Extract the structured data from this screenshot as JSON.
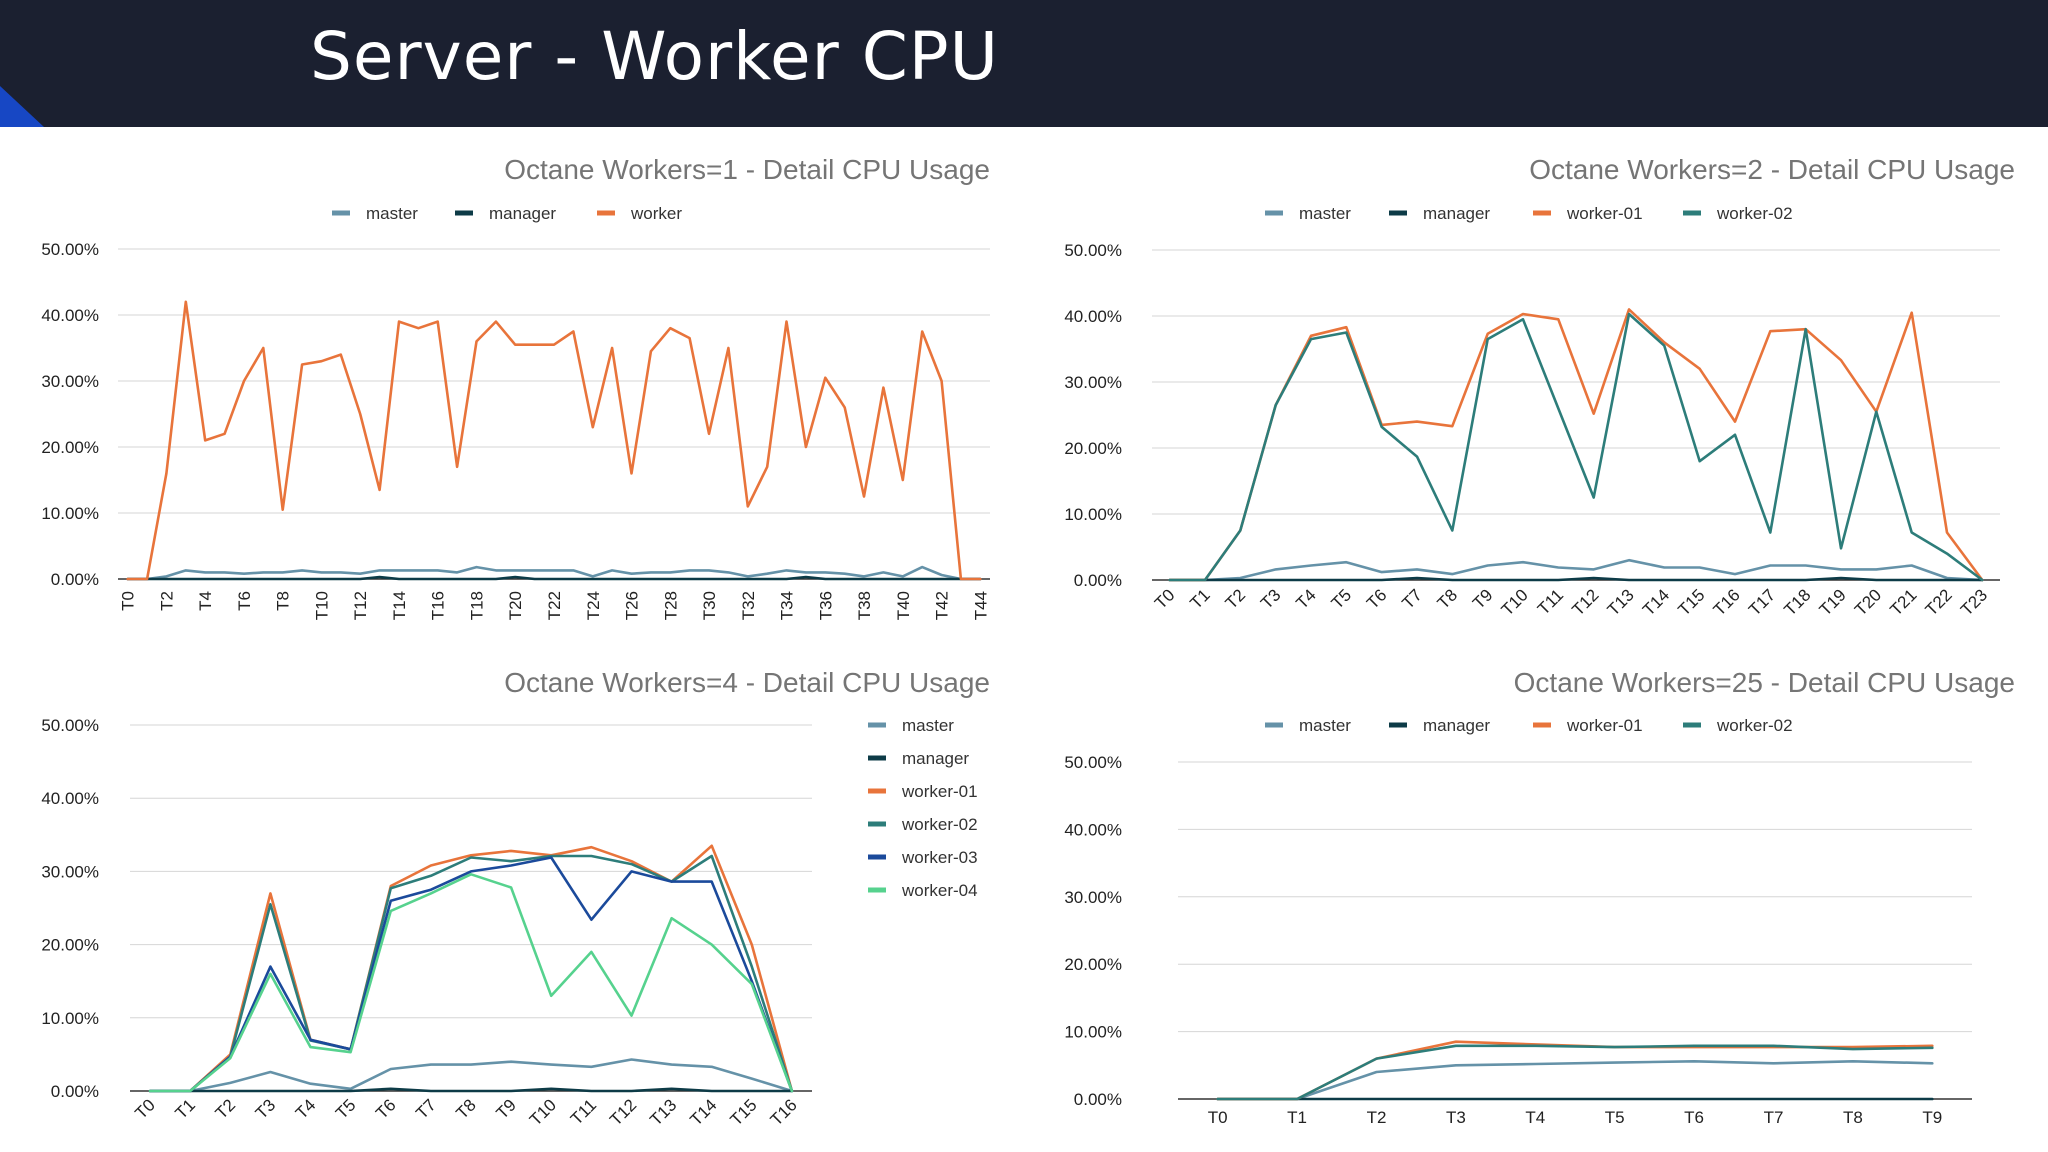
{
  "slide": {
    "title": "Server - Worker CPU"
  },
  "colors": {
    "master": "#6592a8",
    "manager": "#0d3b47",
    "worker": "#e8743b",
    "worker-01": "#e8743b",
    "worker-02": "#2d7d7a",
    "worker-03": "#1b4a9b",
    "worker-04": "#56d28e"
  },
  "chart_data": [
    {
      "type": "line",
      "title": "Octane Workers=1 - Detail CPU Usage",
      "legend_position": "top",
      "grid": true,
      "ylim": [
        0,
        50
      ],
      "yticks": [
        "0.00%",
        "10.00%",
        "20.00%",
        "30.00%",
        "40.00%",
        "50.00%"
      ],
      "categories": [
        "T0",
        "T1",
        "T2",
        "T3",
        "T4",
        "T5",
        "T6",
        "T7",
        "T8",
        "T9",
        "T10",
        "T11",
        "T12",
        "T13",
        "T14",
        "T15",
        "T16",
        "T17",
        "T18",
        "T19",
        "T20",
        "T21",
        "T22",
        "T23",
        "T24",
        "T25",
        "T26",
        "T27",
        "T28",
        "T29",
        "T30",
        "T31",
        "T32",
        "T33",
        "T34",
        "T35",
        "T36",
        "T37",
        "T38",
        "T39",
        "T40",
        "T41",
        "T42",
        "T43",
        "T44"
      ],
      "tick_labels": [
        "T0",
        "",
        "T2",
        "",
        "T4",
        "",
        "T6",
        "",
        "T8",
        "",
        "T10",
        "",
        "T12",
        "",
        "T14",
        "",
        "T16",
        "",
        "T18",
        "",
        "T20",
        "",
        "T22",
        "",
        "T24",
        "",
        "T26",
        "",
        "T28",
        "",
        "T30",
        "",
        "T32",
        "",
        "T34",
        "",
        "T36",
        "",
        "T38",
        "",
        "T40",
        "",
        "T42",
        "",
        "T44"
      ],
      "series": [
        {
          "name": "master",
          "values": [
            0,
            0,
            0.4,
            1.3,
            1.0,
            1.0,
            0.8,
            1.0,
            1.0,
            1.3,
            1.0,
            1.0,
            0.8,
            1.3,
            1.3,
            1.3,
            1.3,
            1.0,
            1.8,
            1.3,
            1.3,
            1.3,
            1.3,
            1.3,
            0.4,
            1.3,
            0.8,
            1.0,
            1.0,
            1.3,
            1.3,
            1.0,
            0.4,
            0.8,
            1.3,
            1.0,
            1.0,
            0.8,
            0.4,
            1.0,
            0.4,
            1.8,
            0.6,
            0,
            0
          ]
        },
        {
          "name": "manager",
          "values": [
            0,
            0,
            0,
            0,
            0,
            0,
            0,
            0,
            0,
            0,
            0,
            0,
            0,
            0.3,
            0,
            0,
            0,
            0,
            0,
            0,
            0.3,
            0,
            0,
            0,
            0,
            0,
            0,
            0,
            0,
            0,
            0,
            0,
            0,
            0,
            0,
            0.3,
            0,
            0,
            0,
            0,
            0,
            0,
            0,
            0,
            0
          ]
        },
        {
          "name": "worker",
          "values": [
            0,
            0,
            16,
            42,
            21,
            22,
            30,
            35,
            10.5,
            32.5,
            33,
            34,
            25,
            13.5,
            39,
            38,
            39,
            17,
            36,
            39,
            35.5,
            35.5,
            35.5,
            37.5,
            23,
            35,
            16,
            34.5,
            38,
            36.5,
            22,
            35,
            11,
            17,
            39,
            20,
            30.5,
            26,
            12.5,
            29,
            15,
            37.5,
            30,
            0,
            0
          ]
        }
      ]
    },
    {
      "type": "line",
      "title": "Octane Workers=2 - Detail CPU Usage",
      "legend_position": "top",
      "grid": true,
      "ylim": [
        0,
        50
      ],
      "yticks": [
        "0.00%",
        "10.00%",
        "20.00%",
        "30.00%",
        "40.00%",
        "50.00%"
      ],
      "categories": [
        "T0",
        "T1",
        "T2",
        "T3",
        "T4",
        "T5",
        "T6",
        "T7",
        "T8",
        "T9",
        "T10",
        "T11",
        "T12",
        "T13",
        "T14",
        "T15",
        "T16",
        "T17",
        "T18",
        "T19",
        "T20",
        "T21",
        "T22",
        "T23"
      ],
      "tick_labels": [
        "T0",
        "T1",
        "T2",
        "T3",
        "T4",
        "T5",
        "T6",
        "T7",
        "T8",
        "T9",
        "T10",
        "T11",
        "T12",
        "T13",
        "T14",
        "T15",
        "T16",
        "T17",
        "T18",
        "T19",
        "T20",
        "T21",
        "T22",
        "T23"
      ],
      "series": [
        {
          "name": "master",
          "values": [
            0,
            0,
            0.3,
            1.6,
            2.2,
            2.7,
            1.2,
            1.6,
            0.9,
            2.2,
            2.7,
            1.9,
            1.6,
            3.0,
            1.9,
            1.9,
            0.9,
            2.2,
            2.2,
            1.6,
            1.6,
            2.2,
            0.3,
            0
          ]
        },
        {
          "name": "manager",
          "values": [
            0,
            0,
            0,
            0,
            0,
            0,
            0,
            0.3,
            0,
            0,
            0,
            0,
            0.3,
            0,
            0,
            0,
            0,
            0,
            0,
            0.3,
            0,
            0,
            0,
            0
          ]
        },
        {
          "name": "worker-01",
          "values": [
            0,
            0,
            7.5,
            26.5,
            37,
            38.3,
            23.5,
            24,
            23.3,
            37.3,
            40.3,
            39.5,
            25.2,
            41,
            36,
            32,
            24,
            37.7,
            38,
            33.3,
            25.5,
            40.5,
            7.2,
            0
          ]
        },
        {
          "name": "worker-02",
          "values": [
            0,
            0,
            7.5,
            26.5,
            36.5,
            37.5,
            23.2,
            18.7,
            7.5,
            36.5,
            39.5,
            26,
            12.5,
            40.3,
            35.5,
            18,
            22,
            7.2,
            38,
            4.8,
            25.5,
            7.2,
            4,
            0
          ]
        }
      ]
    },
    {
      "type": "line",
      "title": "Octane Workers=4 - Detail CPU Usage",
      "legend_position": "right",
      "grid": true,
      "ylim": [
        0,
        50
      ],
      "yticks": [
        "0.00%",
        "10.00%",
        "20.00%",
        "30.00%",
        "40.00%",
        "50.00%"
      ],
      "categories": [
        "T0",
        "T1",
        "T2",
        "T3",
        "T4",
        "T5",
        "T6",
        "T7",
        "T8",
        "T9",
        "T10",
        "T11",
        "T12",
        "T13",
        "T14",
        "T15",
        "T16"
      ],
      "tick_labels": [
        "T0",
        "T1",
        "T2",
        "T3",
        "T4",
        "T5",
        "T6",
        "T7",
        "T8",
        "T9",
        "T10",
        "T11",
        "T12",
        "T13",
        "T14",
        "T15",
        "T16"
      ],
      "series": [
        {
          "name": "master",
          "values": [
            0,
            0,
            1.1,
            2.6,
            1.0,
            0.3,
            3.0,
            3.6,
            3.6,
            4.0,
            3.6,
            3.3,
            4.3,
            3.6,
            3.3,
            1.7,
            0
          ]
        },
        {
          "name": "manager",
          "values": [
            0,
            0,
            0,
            0,
            0,
            0,
            0.3,
            0,
            0,
            0,
            0.3,
            0,
            0,
            0.3,
            0,
            0,
            0
          ]
        },
        {
          "name": "worker-01",
          "values": [
            0,
            0,
            5,
            27,
            7,
            5.7,
            28,
            30.8,
            32.2,
            32.8,
            32.2,
            33.3,
            31.4,
            28.6,
            33.5,
            20,
            0
          ]
        },
        {
          "name": "worker-02",
          "values": [
            0,
            0,
            4.7,
            25.5,
            6.9,
            5.7,
            27.7,
            29.4,
            31.9,
            31.4,
            32.1,
            32.1,
            31,
            28.6,
            32.1,
            17,
            0
          ]
        },
        {
          "name": "worker-03",
          "values": [
            0,
            0,
            4.7,
            17,
            7,
            5.7,
            26,
            27.5,
            30,
            30.8,
            31.9,
            23.4,
            30,
            28.6,
            28.6,
            15,
            0
          ]
        },
        {
          "name": "worker-04",
          "values": [
            0,
            0,
            4.5,
            16,
            6,
            5.3,
            24.6,
            27,
            29.6,
            27.8,
            13,
            19,
            10.3,
            23.6,
            20,
            14.6,
            0
          ]
        }
      ]
    },
    {
      "type": "line",
      "title": "Octane Workers=25 - Detail CPU Usage",
      "legend_position": "top",
      "grid": true,
      "ylim": [
        0,
        50
      ],
      "yticks": [
        "0.00%",
        "10.00%",
        "20.00%",
        "30.00%",
        "40.00%",
        "50.00%"
      ],
      "categories": [
        "T0",
        "T1",
        "T2",
        "T3",
        "T4",
        "T5",
        "T6",
        "T7",
        "T8",
        "T9"
      ],
      "tick_labels": [
        "T0",
        "T1",
        "T2",
        "T3",
        "T4",
        "T5",
        "T6",
        "T7",
        "T8",
        "T9"
      ],
      "series": [
        {
          "name": "master",
          "values": [
            0,
            0,
            4,
            5,
            5.2,
            5.4,
            5.6,
            5.3,
            5.6,
            5.3
          ]
        },
        {
          "name": "manager",
          "values": [
            0,
            0,
            0,
            0,
            0,
            0,
            0,
            0,
            0,
            0
          ]
        },
        {
          "name": "worker-01",
          "values": [
            0,
            0,
            6,
            8.5,
            8.1,
            7.7,
            7.7,
            7.7,
            7.7,
            7.9
          ]
        },
        {
          "name": "worker-02",
          "values": [
            0,
            0,
            6,
            7.9,
            7.9,
            7.7,
            7.9,
            7.9,
            7.4,
            7.6
          ]
        }
      ]
    }
  ]
}
